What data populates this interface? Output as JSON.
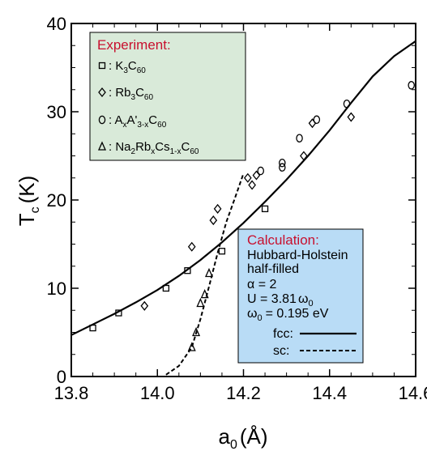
{
  "chart_data": {
    "type": "scatter",
    "xlabel": {
      "main": "a",
      "sub": "0",
      "unit": "(Å)"
    },
    "ylabel": {
      "main": "T",
      "sub": "c",
      "unit": "(K)"
    },
    "xlim": [
      13.8,
      14.6
    ],
    "ylim": [
      0,
      40
    ],
    "x_ticks": [
      "13.8",
      "14.0",
      "14.2",
      "14.4",
      "14.6"
    ],
    "y_ticks": [
      "0",
      "10",
      "20",
      "30",
      "40"
    ],
    "x_tick_values": [
      13.8,
      14.0,
      14.2,
      14.4,
      14.6
    ],
    "y_tick_values": [
      0,
      10,
      20,
      30,
      40
    ],
    "series": [
      {
        "name": ": K3C60",
        "marker": "square",
        "points": [
          [
            13.85,
            5.5
          ],
          [
            13.91,
            7.2
          ],
          [
            14.02,
            10.0
          ],
          [
            14.07,
            12.0
          ],
          [
            14.15,
            14.2
          ],
          [
            14.25,
            19.0
          ]
        ]
      },
      {
        "name": ": Rb3C60",
        "marker": "diamond",
        "points": [
          [
            13.97,
            8.0
          ],
          [
            14.08,
            14.7
          ],
          [
            14.13,
            17.7
          ],
          [
            14.14,
            19.0
          ],
          [
            14.21,
            22.5
          ],
          [
            14.22,
            21.7
          ],
          [
            14.23,
            22.8
          ],
          [
            14.34,
            25.0
          ],
          [
            14.36,
            28.7
          ],
          [
            14.45,
            29.4
          ]
        ]
      },
      {
        "name": ": AxA'3-xC60",
        "marker": "circle",
        "points": [
          [
            14.24,
            23.3
          ],
          [
            14.29,
            24.2
          ],
          [
            14.29,
            23.7
          ],
          [
            14.33,
            27.0
          ],
          [
            14.37,
            29.1
          ],
          [
            14.44,
            30.9
          ],
          [
            14.59,
            33.0
          ]
        ]
      },
      {
        "name": ": Na2RbxCs1-xC60",
        "marker": "triangle",
        "points": [
          [
            14.08,
            3.3
          ],
          [
            14.09,
            5.0
          ],
          [
            14.1,
            8.3
          ],
          [
            14.11,
            9.3
          ],
          [
            14.12,
            11.7
          ]
        ]
      }
    ],
    "curves": [
      {
        "name": "fcc",
        "style": "solid",
        "points": [
          [
            13.8,
            4.7
          ],
          [
            13.85,
            5.9
          ],
          [
            13.9,
            7.1
          ],
          [
            13.95,
            8.4
          ],
          [
            14.0,
            9.8
          ],
          [
            14.05,
            11.4
          ],
          [
            14.1,
            13.2
          ],
          [
            14.15,
            15.2
          ],
          [
            14.2,
            17.4
          ],
          [
            14.25,
            19.8
          ],
          [
            14.3,
            22.3
          ],
          [
            14.35,
            25.0
          ],
          [
            14.4,
            27.9
          ],
          [
            14.45,
            31.0
          ],
          [
            14.5,
            34.0
          ],
          [
            14.55,
            36.3
          ],
          [
            14.6,
            38.0
          ]
        ]
      },
      {
        "name": "sc",
        "style": "dashed",
        "points": [
          [
            14.02,
            0.2
          ],
          [
            14.05,
            1.2
          ],
          [
            14.08,
            3.3
          ],
          [
            14.1,
            6.5
          ],
          [
            14.12,
            10.2
          ],
          [
            14.14,
            14.0
          ],
          [
            14.16,
            17.5
          ],
          [
            14.18,
            20.2
          ],
          [
            14.2,
            23.0
          ]
        ]
      }
    ],
    "legend": {
      "title": "Experiment:",
      "items": [
        {
          "marker": "square",
          "label": ": K",
          "sub1": "3",
          "label2": "C",
          "sub2": "60"
        },
        {
          "marker": "diamond",
          "label": ": Rb",
          "sub1": "3",
          "label2": "C",
          "sub2": "60"
        },
        {
          "marker": "circle",
          "label": ": A",
          "sub1": "x",
          "label2": "A'",
          "sub2": "3-x",
          "label3": "C",
          "sub3": "60"
        },
        {
          "marker": "triangle",
          "label": ": Na",
          "sub1": "2",
          "label2": "Rb",
          "sub2": "x",
          "label3": "Cs",
          "sub3": "1-x",
          "label4": "C",
          "sub4": "60"
        }
      ]
    },
    "calculation": {
      "title": "Calculation:",
      "line1": "Hubbard-Holstein",
      "line2": "half-filled",
      "line3": "α  =  2",
      "line4_prefix": "U  =  3.81",
      "line4_symbol": "ω",
      "line4_sub": "0",
      "line5_symbol": "ω",
      "line5_sub": "0",
      "line5_suffix": "=  0.195 eV",
      "fcc_label": "fcc:",
      "sc_label": "sc:"
    },
    "colors": {
      "legend_bg": "#d9ead9",
      "calc_bg": "#b9dcf6",
      "title_red": "#c8102e",
      "axis": "#000000"
    }
  }
}
